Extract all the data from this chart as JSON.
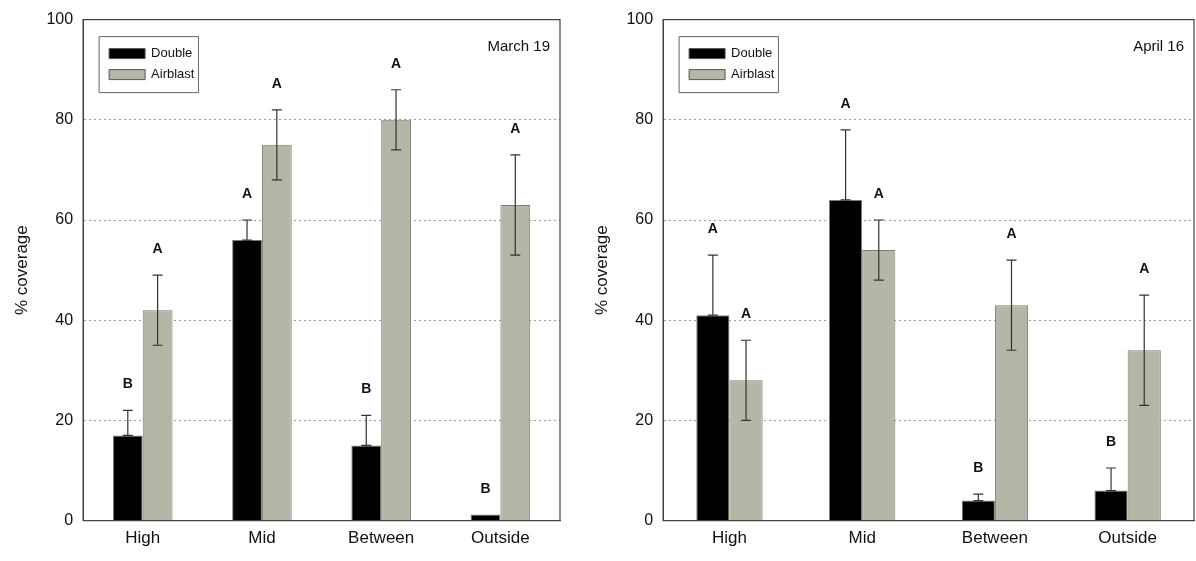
{
  "chart_data": [
    {
      "type": "bar",
      "title": "March 19",
      "ylabel": "% coverage",
      "categories": [
        "High",
        "Mid",
        "Between",
        "Outside"
      ],
      "ylim": [
        0,
        100
      ],
      "yticks": [
        0,
        20,
        40,
        60,
        80,
        100
      ],
      "grid": "y",
      "legend": "top left",
      "series": [
        {
          "name": "Double",
          "color": "#000000",
          "values": [
            17,
            56,
            15,
            1.2
          ],
          "errors": [
            [
              17,
              22
            ],
            [
              56,
              60
            ],
            [
              15,
              21
            ],
            null
          ]
        },
        {
          "name": "Airblast",
          "color": "#b5b5a8",
          "values": [
            42,
            75,
            80,
            63
          ],
          "errors": [
            [
              35,
              49
            ],
            [
              68,
              82
            ],
            [
              74,
              86
            ],
            [
              53,
              73
            ]
          ]
        }
      ],
      "annotations": [
        "B",
        "A",
        "A",
        "A",
        "B",
        "A",
        "B",
        "A"
      ]
    },
    {
      "type": "bar",
      "title": "April 16",
      "ylabel": "% coverage",
      "categories": [
        "High",
        "Mid",
        "Between",
        "Outside"
      ],
      "ylim": [
        0,
        100
      ],
      "yticks": [
        0,
        20,
        40,
        60,
        80,
        100
      ],
      "grid": "y",
      "legend": "top left",
      "series": [
        {
          "name": "Double",
          "color": "#000000",
          "values": [
            41,
            64,
            4,
            6
          ],
          "errors": [
            [
              41,
              53
            ],
            [
              64,
              78
            ],
            [
              4,
              5.3
            ],
            [
              6,
              10.5
            ]
          ]
        },
        {
          "name": "Airblast",
          "color": "#b5b5a8",
          "values": [
            28,
            54,
            43,
            34
          ],
          "errors": [
            [
              20,
              36
            ],
            [
              48,
              60
            ],
            [
              34,
              52
            ],
            [
              23,
              45
            ]
          ]
        }
      ],
      "annotations": [
        "A",
        "A",
        "A",
        "A",
        "B",
        "A",
        "B",
        "A"
      ]
    }
  ]
}
